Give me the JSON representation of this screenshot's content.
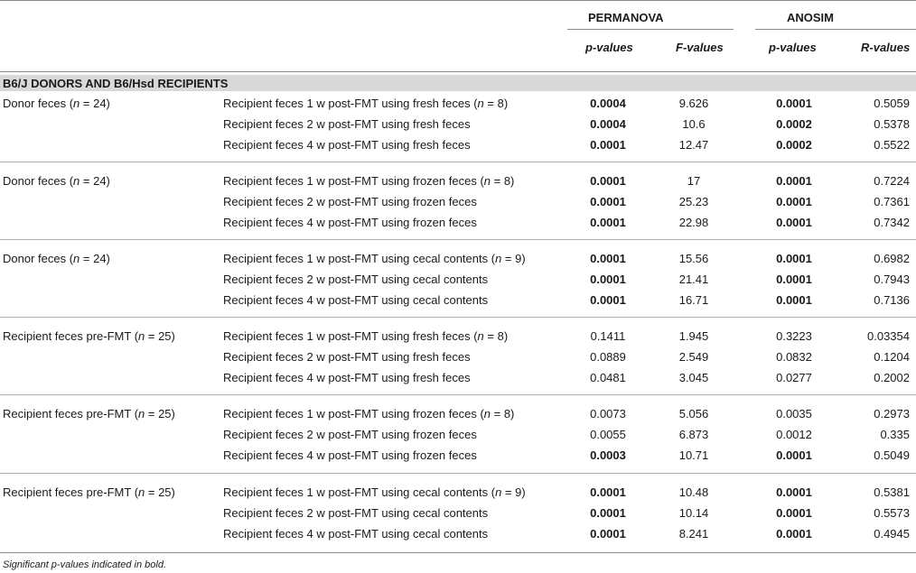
{
  "headers": {
    "permanova": "PERMANOVA",
    "anosim": "ANOSIM",
    "p_values_1": "p-values",
    "f_values": "F-values",
    "p_values_2": "p-values",
    "r_values": "R-values"
  },
  "section_title": "B6/J DONORS AND B6/Hsd RECIPIENTS",
  "groups": [
    {
      "label": "Donor feces (n = 24)",
      "rows": [
        {
          "comparison": "Recipient feces 1 w post-FMT using fresh feces (n = 8)",
          "perm_p": "0.0004",
          "perm_p_bold": true,
          "f": "9.626",
          "anosim_p": "0.0001",
          "anosim_p_bold": true,
          "r": "0.5059"
        },
        {
          "comparison": "Recipient feces 2 w post-FMT using fresh feces",
          "perm_p": "0.0004",
          "perm_p_bold": true,
          "f": "10.6",
          "anosim_p": "0.0002",
          "anosim_p_bold": true,
          "r": "0.5378"
        },
        {
          "comparison": "Recipient feces 4 w post-FMT using fresh feces",
          "perm_p": "0.0001",
          "perm_p_bold": true,
          "f": "12.47",
          "anosim_p": "0.0002",
          "anosim_p_bold": true,
          "r": "0.5522"
        }
      ]
    },
    {
      "label": "Donor feces (n = 24)",
      "rows": [
        {
          "comparison": "Recipient feces 1 w post-FMT using frozen feces (n = 8)",
          "perm_p": "0.0001",
          "perm_p_bold": true,
          "f": "17",
          "anosim_p": "0.0001",
          "anosim_p_bold": true,
          "r": "0.7224"
        },
        {
          "comparison": "Recipient feces 2 w post-FMT using frozen feces",
          "perm_p": "0.0001",
          "perm_p_bold": true,
          "f": "25.23",
          "anosim_p": "0.0001",
          "anosim_p_bold": true,
          "r": "0.7361"
        },
        {
          "comparison": "Recipient feces 4 w post-FMT using frozen feces",
          "perm_p": "0.0001",
          "perm_p_bold": true,
          "f": "22.98",
          "anosim_p": "0.0001",
          "anosim_p_bold": true,
          "r": "0.7342"
        }
      ]
    },
    {
      "label": "Donor feces (n = 24)",
      "rows": [
        {
          "comparison": "Recipient feces 1 w post-FMT using cecal contents (n = 9)",
          "perm_p": "0.0001",
          "perm_p_bold": true,
          "f": "15.56",
          "anosim_p": "0.0001",
          "anosim_p_bold": true,
          "r": "0.6982"
        },
        {
          "comparison": "Recipient feces 2 w post-FMT using cecal contents",
          "perm_p": "0.0001",
          "perm_p_bold": true,
          "f": "21.41",
          "anosim_p": "0.0001",
          "anosim_p_bold": true,
          "r": "0.7943"
        },
        {
          "comparison": "Recipient feces 4 w post-FMT using cecal contents",
          "perm_p": "0.0001",
          "perm_p_bold": true,
          "f": "16.71",
          "anosim_p": "0.0001",
          "anosim_p_bold": true,
          "r": "0.7136"
        }
      ]
    },
    {
      "label": "Recipient feces pre-FMT (n = 25)",
      "rows": [
        {
          "comparison": "Recipient feces 1 w post-FMT using fresh feces (n = 8)",
          "perm_p": "0.1411",
          "perm_p_bold": false,
          "f": "1.945",
          "anosim_p": "0.3223",
          "anosim_p_bold": false,
          "r": "0.03354"
        },
        {
          "comparison": "Recipient feces 2 w post-FMT using fresh feces",
          "perm_p": "0.0889",
          "perm_p_bold": false,
          "f": "2.549",
          "anosim_p": "0.0832",
          "anosim_p_bold": false,
          "r": "0.1204"
        },
        {
          "comparison": "Recipient feces 4 w post-FMT using fresh feces",
          "perm_p": "0.0481",
          "perm_p_bold": false,
          "f": "3.045",
          "anosim_p": "0.0277",
          "anosim_p_bold": false,
          "r": "0.2002"
        }
      ]
    },
    {
      "label": "Recipient feces pre-FMT (n = 25)",
      "rows": [
        {
          "comparison": "Recipient feces 1 w post-FMT using frozen feces (n = 8)",
          "perm_p": "0.0073",
          "perm_p_bold": false,
          "f": "5.056",
          "anosim_p": "0.0035",
          "anosim_p_bold": false,
          "r": "0.2973"
        },
        {
          "comparison": "Recipient feces 2 w post-FMT using frozen feces",
          "perm_p": "0.0055",
          "perm_p_bold": false,
          "f": "6.873",
          "anosim_p": "0.0012",
          "anosim_p_bold": false,
          "r": "0.335"
        },
        {
          "comparison": "Recipient feces 4 w post-FMT using frozen feces",
          "perm_p": "0.0003",
          "perm_p_bold": true,
          "f": "10.71",
          "anosim_p": "0.0001",
          "anosim_p_bold": true,
          "r": "0.5049"
        }
      ]
    },
    {
      "label": "Recipient feces pre-FMT (n = 25)",
      "rows": [
        {
          "comparison": "Recipient feces 1 w post-FMT using cecal contents (n = 9)",
          "perm_p": "0.0001",
          "perm_p_bold": true,
          "f": "10.48",
          "anosim_p": "0.0001",
          "anosim_p_bold": true,
          "r": "0.5381"
        },
        {
          "comparison": "Recipient feces 2 w post-FMT using cecal contents",
          "perm_p": "0.0001",
          "perm_p_bold": true,
          "f": "10.14",
          "anosim_p": "0.0001",
          "anosim_p_bold": true,
          "r": "0.5573"
        },
        {
          "comparison": "Recipient feces 4 w post-FMT using cecal contents",
          "perm_p": "0.0001",
          "perm_p_bold": true,
          "f": "8.241",
          "anosim_p": "0.0001",
          "anosim_p_bold": true,
          "r": "0.4945"
        }
      ]
    }
  ],
  "footnote": "Significant p-values indicated in bold."
}
